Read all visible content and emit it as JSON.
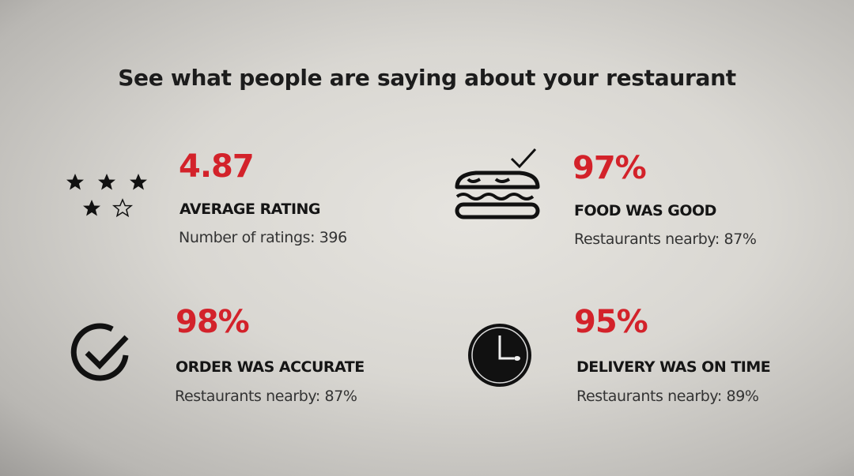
{
  "title": "See what people are saying about your restaurant",
  "accent": "#d3222a",
  "metrics": [
    {
      "value": "4.87",
      "label": "AVERAGE RATING",
      "sub": "Number of ratings: 396",
      "icon": "stars-icon"
    },
    {
      "value": "97%",
      "label": "FOOD WAS GOOD",
      "sub": "Restaurants nearby: 87%",
      "icon": "sandwich-check-icon"
    },
    {
      "value": "98%",
      "label": "ORDER WAS ACCURATE",
      "sub": "Restaurants nearby: 87%",
      "icon": "circle-check-icon"
    },
    {
      "value": "95%",
      "label": "DELIVERY WAS ON TIME",
      "sub": "Restaurants nearby: 89%",
      "icon": "clock-icon"
    }
  ]
}
